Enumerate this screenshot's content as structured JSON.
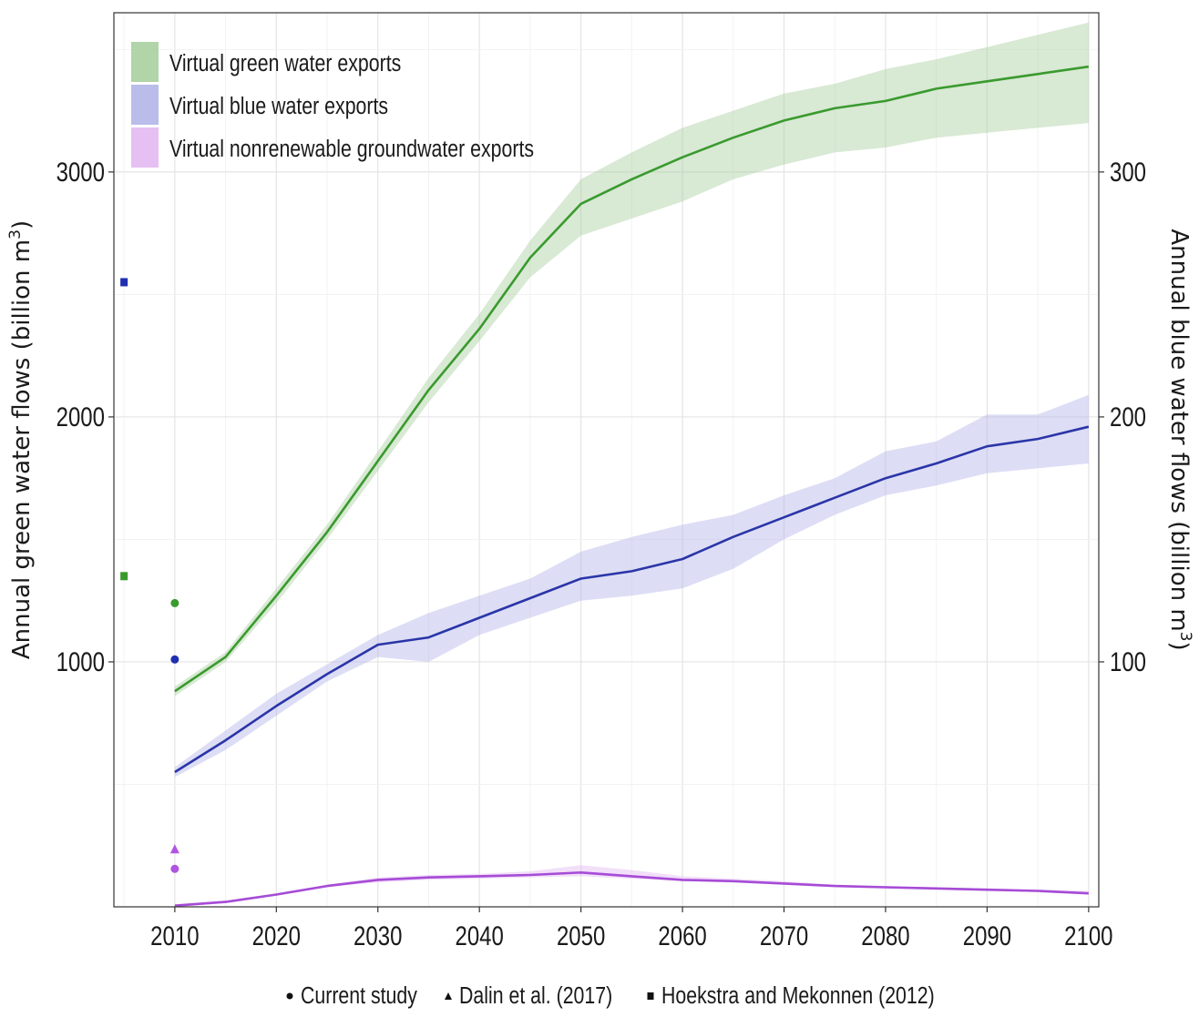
{
  "chart_data": {
    "type": "line",
    "x": [
      2010,
      2015,
      2020,
      2025,
      2030,
      2035,
      2040,
      2045,
      2050,
      2055,
      2060,
      2065,
      2070,
      2075,
      2080,
      2085,
      2090,
      2095,
      2100
    ],
    "xlim": [
      2004,
      2101
    ],
    "xticks": [
      "2010",
      "2020",
      "2030",
      "2040",
      "2050",
      "2060",
      "2070",
      "2080",
      "2090",
      "2100"
    ],
    "y_left": {
      "label": "Annual green water flows (billion m",
      "label_sup": "3",
      "label_end": ")",
      "ylim": [
        0,
        3650
      ],
      "ticks": [
        "1000",
        "2000",
        "3000"
      ]
    },
    "y_right": {
      "label": "Annual blue water flows (billion m",
      "label_sup": "3",
      "label_end": ")",
      "ylim": [
        0,
        365
      ],
      "ticks": [
        "100",
        "200",
        "300"
      ]
    },
    "grid": true,
    "legend_position": "top-left",
    "series": [
      {
        "name": "Virtual green water exports",
        "axis": "left",
        "color": "#3a9a2e",
        "band_color": "#a8cfa0",
        "values": [
          880,
          1020,
          1270,
          1530,
          1820,
          2110,
          2360,
          2650,
          2870,
          2970,
          3060,
          3140,
          3210,
          3260,
          3290,
          3340,
          3370,
          3400,
          3430
        ],
        "lower": [
          860,
          1000,
          1240,
          1500,
          1780,
          2060,
          2310,
          2570,
          2740,
          2810,
          2880,
          2970,
          3030,
          3080,
          3100,
          3140,
          3160,
          3180,
          3200
        ],
        "upper": [
          900,
          1040,
          1300,
          1560,
          1860,
          2160,
          2420,
          2720,
          2970,
          3080,
          3180,
          3250,
          3320,
          3360,
          3420,
          3460,
          3510,
          3560,
          3610
        ]
      },
      {
        "name": "Virtual blue water exports",
        "axis": "right",
        "color": "#2b35a8",
        "band_color": "#b3b6e8",
        "values": [
          55,
          68,
          82,
          95,
          107,
          110,
          118,
          126,
          134,
          137,
          142,
          151,
          159,
          167,
          175,
          181,
          188,
          191,
          196
        ],
        "lower": [
          53,
          64,
          78,
          92,
          102,
          100,
          111,
          118,
          125,
          127,
          130,
          138,
          150,
          160,
          168,
          172,
          177,
          179,
          181
        ],
        "upper": [
          57,
          72,
          87,
          99,
          111,
          120,
          127,
          134,
          145,
          151,
          156,
          160,
          168,
          175,
          186,
          190,
          201,
          201,
          209
        ]
      },
      {
        "name": "Virtual nonrenewable groundwater exports",
        "axis": "right",
        "color": "#a64bd6",
        "band_color": "#e3b8f2",
        "values": [
          0.5,
          2,
          5,
          8.5,
          11,
          12,
          12.5,
          13,
          14,
          12.5,
          11,
          10.5,
          9.5,
          8.5,
          8,
          7.5,
          7,
          6.5,
          5.5
        ],
        "lower": [
          0,
          1.5,
          4.5,
          8,
          10,
          11,
          11.5,
          12,
          12.5,
          11.5,
          10.5,
          10,
          9,
          8,
          7.5,
          7,
          6.5,
          6,
          5
        ],
        "upper": [
          1,
          2.5,
          5.5,
          9,
          12,
          13,
          13.5,
          14.5,
          17,
          15,
          12.5,
          11.5,
          10.5,
          9,
          8.5,
          8,
          7.5,
          7,
          6.5
        ]
      }
    ],
    "reference_points": [
      {
        "source": "Current study",
        "shape": "circle",
        "x": 2010,
        "series": "green",
        "axis": "left",
        "value": 1240
      },
      {
        "source": "Current study",
        "shape": "circle",
        "x": 2010,
        "series": "blue",
        "axis": "right",
        "value": 101
      },
      {
        "source": "Current study",
        "shape": "circle",
        "x": 2010,
        "series": "nonrenewable",
        "axis": "right",
        "value": 15.5
      },
      {
        "source": "Dalin et al. (2017)",
        "shape": "triangle",
        "x": 2010,
        "series": "nonrenewable",
        "axis": "right",
        "value": 23.5
      },
      {
        "source": "Hoekstra and Mekonnen (2012)",
        "shape": "square",
        "x": 2005,
        "series": "green",
        "axis": "left",
        "value": 1350
      },
      {
        "source": "Hoekstra and Mekonnen (2012)",
        "shape": "square",
        "x": 2005,
        "series": "blue",
        "axis": "right",
        "value": 255
      }
    ],
    "shape_legend": [
      "Current study",
      "Dalin et al. (2017)",
      "Hoekstra and Mekonnen (2012)"
    ],
    "colors": {
      "green_point": "#3a9a2e",
      "blue_point": "#1f2fb0",
      "nonrenewable_point": "#b055e0"
    }
  }
}
